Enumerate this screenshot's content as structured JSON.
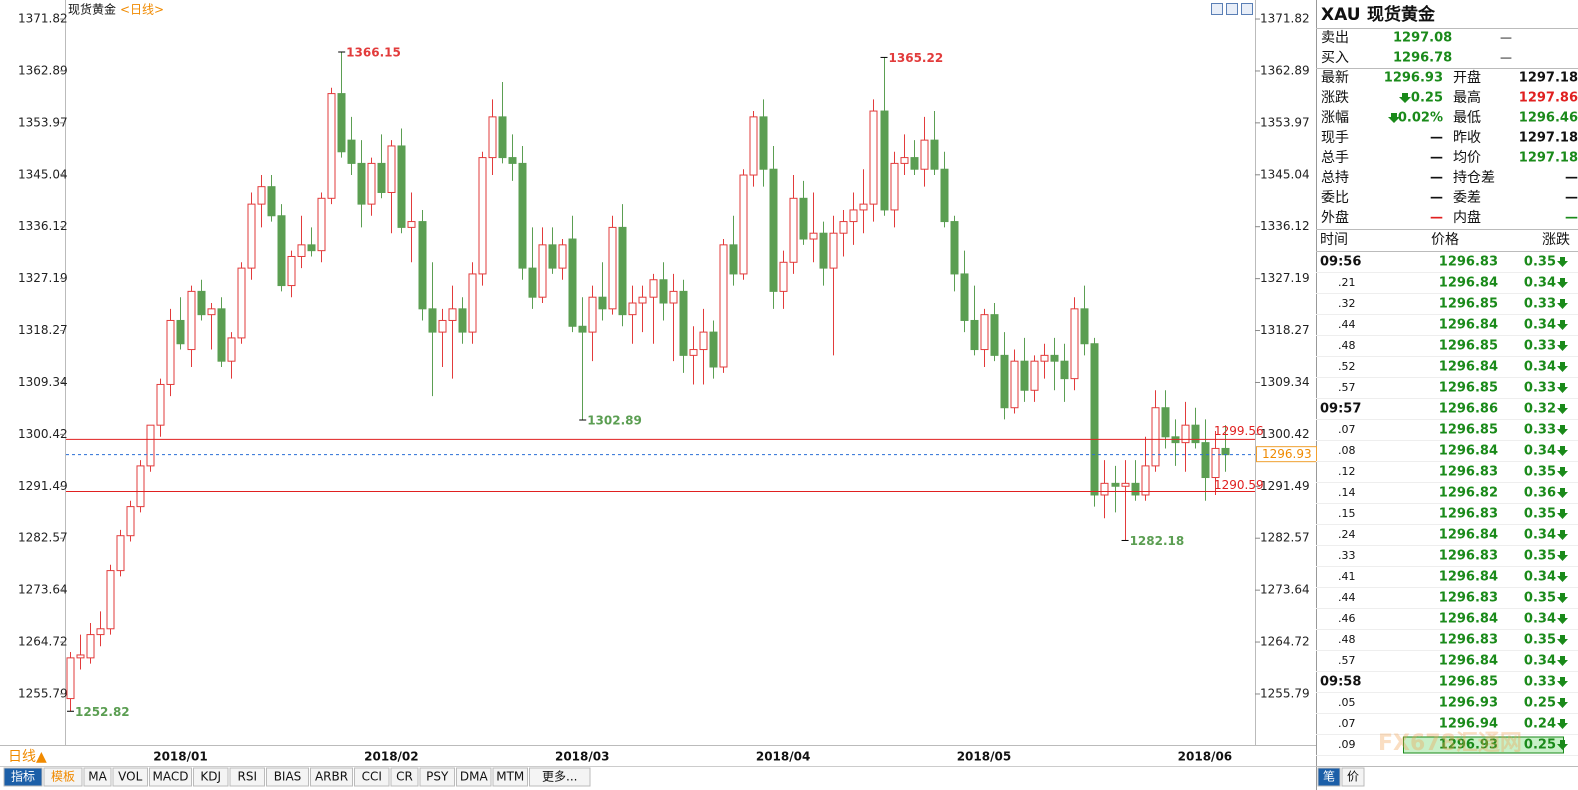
{
  "chart_data": {
    "type": "candlestick",
    "title": "现货黄金",
    "period": "<日线>",
    "ylim": [
      1247.02,
      1375.09
    ],
    "yticks": [
      1371.82,
      1362.89,
      1353.97,
      1345.04,
      1336.12,
      1327.19,
      1318.27,
      1309.34,
      1300.42,
      1291.49,
      1282.57,
      1273.64,
      1264.72,
      1255.79
    ],
    "up_color": "#e23b3b",
    "down_color": "#5b9e52",
    "categories": [
      null,
      null,
      null,
      null,
      null,
      null,
      null,
      null,
      null,
      null,
      null,
      "2018/01",
      null,
      null,
      null,
      null,
      null,
      null,
      null,
      null,
      null,
      null,
      null,
      null,
      null,
      null,
      null,
      null,
      null,
      null,
      null,
      null,
      "2018/02",
      null,
      null,
      null,
      null,
      null,
      null,
      null,
      null,
      null,
      null,
      null,
      null,
      null,
      null,
      null,
      null,
      null,
      null,
      "2018/03",
      null,
      null,
      null,
      null,
      null,
      null,
      null,
      null,
      null,
      null,
      null,
      null,
      null,
      null,
      null,
      null,
      null,
      null,
      null,
      "2018/04",
      null,
      null,
      null,
      null,
      null,
      null,
      null,
      null,
      null,
      null,
      null,
      null,
      null,
      null,
      null,
      null,
      null,
      null,
      null,
      "2018/05",
      null,
      null,
      null,
      null,
      null,
      null,
      null,
      null,
      null,
      null,
      null,
      null,
      null,
      null,
      null,
      null,
      null,
      null,
      null,
      null,
      null,
      "2018/06",
      null,
      null
    ],
    "candles": [
      [
        1255,
        1263,
        1252.82,
        1262
      ],
      [
        1262,
        1266,
        1260,
        1262.5
      ],
      [
        1262,
        1268,
        1261,
        1266
      ],
      [
        1266,
        1270,
        1264,
        1267
      ],
      [
        1267,
        1278,
        1266,
        1277
      ],
      [
        1277,
        1284,
        1276,
        1283
      ],
      [
        1283,
        1289,
        1282,
        1288
      ],
      [
        1288,
        1296,
        1287,
        1295
      ],
      [
        1295,
        1302,
        1294,
        1302
      ],
      [
        1302,
        1310,
        1300,
        1309
      ],
      [
        1309,
        1322,
        1307,
        1320
      ],
      [
        1320,
        1324,
        1315,
        1316
      ],
      [
        1315,
        1326,
        1312,
        1325
      ],
      [
        1325,
        1327,
        1320,
        1321
      ],
      [
        1321,
        1323,
        1315,
        1322
      ],
      [
        1322,
        1324,
        1312,
        1313
      ],
      [
        1313,
        1318,
        1310,
        1317
      ],
      [
        1317,
        1330,
        1316,
        1329
      ],
      [
        1329,
        1342,
        1327,
        1340
      ],
      [
        1340,
        1345,
        1336,
        1343
      ],
      [
        1343,
        1345,
        1337,
        1338
      ],
      [
        1338,
        1340,
        1325,
        1326
      ],
      [
        1326,
        1332,
        1324,
        1331
      ],
      [
        1331,
        1338,
        1329,
        1333
      ],
      [
        1333,
        1336,
        1331,
        1332
      ],
      [
        1332,
        1342,
        1330,
        1341
      ],
      [
        1341,
        1360,
        1340,
        1359
      ],
      [
        1359,
        1366.15,
        1348,
        1349
      ],
      [
        1351,
        1355,
        1345,
        1347
      ],
      [
        1347,
        1351,
        1336,
        1340
      ],
      [
        1340,
        1348,
        1338,
        1347
      ],
      [
        1347,
        1352,
        1341,
        1342
      ],
      [
        1342,
        1351,
        1335,
        1350
      ],
      [
        1350,
        1353,
        1335,
        1336
      ],
      [
        1336,
        1342,
        1330,
        1337
      ],
      [
        1337,
        1339,
        1320,
        1322
      ],
      [
        1322,
        1330,
        1307,
        1318
      ],
      [
        1318,
        1322,
        1312,
        1320
      ],
      [
        1320,
        1326,
        1310,
        1322
      ],
      [
        1322,
        1324,
        1316,
        1318
      ],
      [
        1318,
        1330,
        1316,
        1328
      ],
      [
        1328,
        1349,
        1326,
        1348
      ],
      [
        1348,
        1358,
        1345,
        1355
      ],
      [
        1355,
        1361,
        1347,
        1348
      ],
      [
        1348,
        1352,
        1344,
        1347
      ],
      [
        1347,
        1350,
        1327,
        1329
      ],
      [
        1329,
        1336,
        1322,
        1324
      ],
      [
        1324,
        1336,
        1323,
        1333
      ],
      [
        1333,
        1336,
        1328,
        1329
      ],
      [
        1329,
        1334,
        1327,
        1333
      ],
      [
        1334,
        1338,
        1318,
        1319
      ],
      [
        1319,
        1324,
        1302.89,
        1318
      ],
      [
        1318,
        1326,
        1313,
        1324
      ],
      [
        1324,
        1330,
        1320,
        1322
      ],
      [
        1322,
        1338,
        1321,
        1336
      ],
      [
        1336,
        1340,
        1319,
        1321
      ],
      [
        1321,
        1326,
        1316,
        1323
      ],
      [
        1323,
        1326,
        1318,
        1324
      ],
      [
        1324,
        1328,
        1316,
        1327
      ],
      [
        1327,
        1330,
        1320,
        1323
      ],
      [
        1323,
        1328,
        1313,
        1325
      ],
      [
        1325,
        1327,
        1311,
        1314
      ],
      [
        1314,
        1319,
        1309,
        1315
      ],
      [
        1315,
        1322,
        1309,
        1318
      ],
      [
        1318,
        1320,
        1310,
        1312
      ],
      [
        1312,
        1334,
        1311,
        1333
      ],
      [
        1333,
        1338,
        1326,
        1328
      ],
      [
        1328,
        1346,
        1327,
        1345
      ],
      [
        1345,
        1356,
        1343,
        1355
      ],
      [
        1355,
        1358,
        1343,
        1346
      ],
      [
        1346,
        1350,
        1322,
        1325
      ],
      [
        1325,
        1332,
        1322,
        1330
      ],
      [
        1330,
        1345,
        1328,
        1341
      ],
      [
        1341,
        1344,
        1333,
        1334
      ],
      [
        1334,
        1342,
        1330,
        1335
      ],
      [
        1335,
        1337,
        1326,
        1329
      ],
      [
        1329,
        1338,
        1314,
        1335
      ],
      [
        1335,
        1339,
        1331,
        1337
      ],
      [
        1337,
        1342,
        1333,
        1339
      ],
      [
        1339,
        1346,
        1335,
        1340
      ],
      [
        1340,
        1358,
        1337,
        1356
      ],
      [
        1356,
        1365.22,
        1338,
        1339
      ],
      [
        1339,
        1349,
        1336,
        1347
      ],
      [
        1347,
        1352,
        1345,
        1348
      ],
      [
        1348,
        1351,
        1345,
        1346
      ],
      [
        1346,
        1355,
        1343,
        1351
      ],
      [
        1351,
        1356,
        1345,
        1346
      ],
      [
        1346,
        1349,
        1336,
        1337
      ],
      [
        1337,
        1338,
        1325,
        1328
      ],
      [
        1328,
        1332,
        1318,
        1320
      ],
      [
        1320,
        1326,
        1314,
        1315
      ],
      [
        1315,
        1322,
        1312,
        1321
      ],
      [
        1321,
        1323,
        1313,
        1314
      ],
      [
        1314,
        1318,
        1303,
        1305
      ],
      [
        1305,
        1315,
        1304,
        1313
      ],
      [
        1313,
        1317,
        1306,
        1308
      ],
      [
        1308,
        1314,
        1306,
        1313
      ],
      [
        1313,
        1316,
        1310,
        1314
      ],
      [
        1314,
        1317,
        1308,
        1313
      ],
      [
        1313,
        1316,
        1306,
        1310
      ],
      [
        1310,
        1324,
        1308,
        1322
      ],
      [
        1322,
        1326,
        1314,
        1316
      ],
      [
        1316,
        1317,
        1288,
        1290
      ],
      [
        1290,
        1296,
        1286,
        1292
      ],
      [
        1292,
        1295,
        1287,
        1291.5
      ],
      [
        1291.5,
        1296,
        1282.18,
        1292
      ],
      [
        1292,
        1296,
        1289,
        1290
      ],
      [
        1290,
        1300,
        1289,
        1295
      ],
      [
        1295,
        1308,
        1294,
        1305
      ],
      [
        1305,
        1308,
        1298,
        1300
      ],
      [
        1300,
        1303,
        1295,
        1299
      ],
      [
        1299,
        1306,
        1294,
        1302
      ],
      [
        1302,
        1305,
        1298,
        1299
      ],
      [
        1299,
        1303,
        1289,
        1293
      ],
      [
        1293,
        1301,
        1290,
        1298
      ],
      [
        1298,
        1302,
        1294,
        1296.93
      ]
    ],
    "hlines": [
      1299.56,
      1290.59
    ],
    "hline_color": "#e02020",
    "current_price": 1296.93,
    "current_color": "#2a6fd6",
    "period_button": "日线▲",
    "tabs": [
      "指标",
      "模板",
      "MA",
      "VOL",
      "MACD",
      "KDJ",
      "RSI",
      "BIAS",
      "ARBR",
      "CCI",
      "CR",
      "PSY",
      "DMA",
      "MTM",
      "更多..."
    ]
  },
  "quote": {
    "symbol": "XAU",
    "name": "现货黄金",
    "bid_ask": [
      [
        "卖出",
        "1297.08",
        "—"
      ],
      [
        "买入",
        "1296.78",
        "—"
      ]
    ],
    "stats": [
      [
        "最新",
        "1296.93",
        "开盘",
        "1297.18"
      ],
      [
        "涨跌",
        "0.25",
        "最高",
        "1297.86"
      ],
      [
        "涨幅",
        "0.02%",
        "最低",
        "1296.46"
      ],
      [
        "现手",
        "—",
        "昨收",
        "1297.18"
      ],
      [
        "总手",
        "—",
        "均价",
        "1297.18"
      ],
      [
        "总持",
        "—",
        "持仓差",
        "—"
      ],
      [
        "委比",
        "—",
        "委差",
        "—"
      ],
      [
        "外盘",
        "—",
        "内盘",
        "—"
      ]
    ],
    "ticks_header": [
      "时间",
      "价格",
      "涨跌"
    ],
    "ticks": [
      [
        "09:56",
        "1296.83",
        "0.35"
      ],
      [
        ".21",
        "1296.84",
        "0.34"
      ],
      [
        ".32",
        "1296.85",
        "0.33"
      ],
      [
        ".44",
        "1296.84",
        "0.34"
      ],
      [
        ".48",
        "1296.85",
        "0.33"
      ],
      [
        ".52",
        "1296.84",
        "0.34"
      ],
      [
        ".57",
        "1296.85",
        "0.33"
      ],
      [
        "09:57",
        "1296.86",
        "0.32"
      ],
      [
        ".07",
        "1296.85",
        "0.33"
      ],
      [
        ".08",
        "1296.84",
        "0.34"
      ],
      [
        ".12",
        "1296.83",
        "0.35"
      ],
      [
        ".14",
        "1296.82",
        "0.36"
      ],
      [
        ".15",
        "1296.83",
        "0.35"
      ],
      [
        ".24",
        "1296.84",
        "0.34"
      ],
      [
        ".33",
        "1296.83",
        "0.35"
      ],
      [
        ".41",
        "1296.84",
        "0.34"
      ],
      [
        ".44",
        "1296.83",
        "0.35"
      ],
      [
        ".46",
        "1296.84",
        "0.34"
      ],
      [
        ".48",
        "1296.83",
        "0.35"
      ],
      [
        ".57",
        "1296.84",
        "0.34"
      ],
      [
        "09:58",
        "1296.85",
        "0.33"
      ],
      [
        ".05",
        "1296.93",
        "0.25"
      ],
      [
        ".07",
        "1296.94",
        "0.24"
      ],
      [
        ".09",
        "1296.93",
        "0.25"
      ]
    ],
    "tabs": [
      "笔",
      "价"
    ],
    "watermark": "FX678汇通网"
  }
}
